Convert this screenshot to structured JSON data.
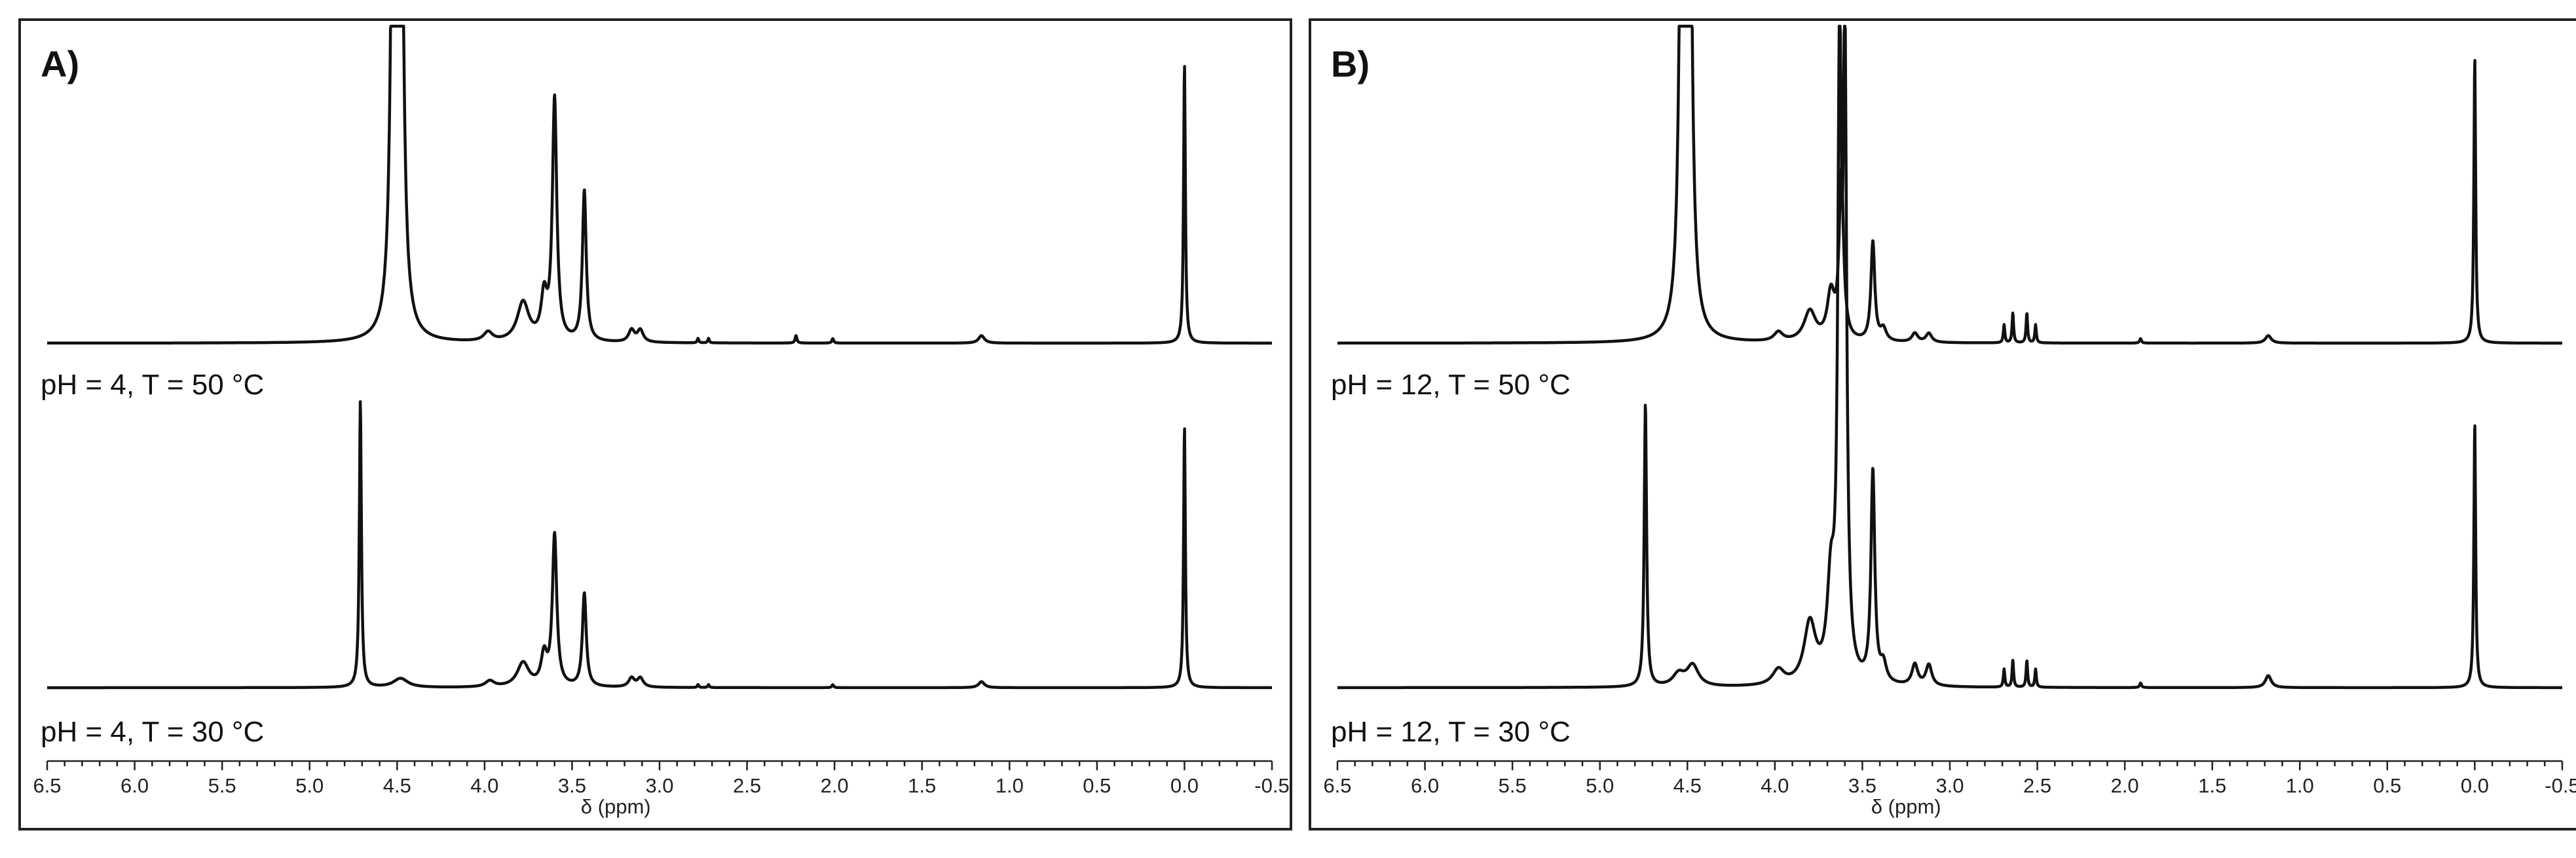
{
  "chart_data": [
    {
      "type": "line",
      "panel_label": "A)",
      "xlabel": "δ (ppm)",
      "xlim": [
        6.5,
        -0.5
      ],
      "x_ticks": [
        "6.5",
        "6.0",
        "5.5",
        "5.0",
        "4.5",
        "4.0",
        "3.5",
        "3.0",
        "2.5",
        "2.0",
        "1.5",
        "1.0",
        "0.5",
        "0.0",
        "-0.5"
      ],
      "x_tick_values": [
        6.5,
        6.0,
        5.5,
        5.0,
        4.5,
        4.0,
        3.5,
        3.0,
        2.5,
        2.0,
        1.5,
        1.0,
        0.5,
        0.0,
        -0.5
      ],
      "series": [
        {
          "name": "pH = 4, T = 50 °C",
          "peaks": [
            {
              "ppm": 4.52,
              "h": 2.0,
              "w": 0.016
            },
            {
              "ppm": 4.48,
              "h": 2.0,
              "w": 0.016
            },
            {
              "ppm": 3.98,
              "h": 0.03,
              "w": 0.03
            },
            {
              "ppm": 3.78,
              "h": 0.13,
              "w": 0.04
            },
            {
              "ppm": 3.66,
              "h": 0.14,
              "w": 0.02
            },
            {
              "ppm": 3.6,
              "h": 0.8,
              "w": 0.015
            },
            {
              "ppm": 3.43,
              "h": 0.5,
              "w": 0.013
            },
            {
              "ppm": 3.16,
              "h": 0.04,
              "w": 0.02
            },
            {
              "ppm": 3.11,
              "h": 0.04,
              "w": 0.02
            },
            {
              "ppm": 2.78,
              "h": 0.015,
              "w": 0.005
            },
            {
              "ppm": 2.72,
              "h": 0.015,
              "w": 0.005
            },
            {
              "ppm": 2.22,
              "h": 0.025,
              "w": 0.006
            },
            {
              "ppm": 2.01,
              "h": 0.015,
              "w": 0.006
            },
            {
              "ppm": 1.16,
              "h": 0.025,
              "w": 0.02
            },
            {
              "ppm": 0.0,
              "h": 0.93,
              "w": 0.006
            }
          ]
        },
        {
          "name": "pH = 4, T = 30 °C",
          "peaks": [
            {
              "ppm": 4.71,
              "h": 0.95,
              "w": 0.007
            },
            {
              "ppm": 4.48,
              "h": 0.03,
              "w": 0.05
            },
            {
              "ppm": 3.97,
              "h": 0.02,
              "w": 0.03
            },
            {
              "ppm": 3.78,
              "h": 0.08,
              "w": 0.04
            },
            {
              "ppm": 3.66,
              "h": 0.1,
              "w": 0.02
            },
            {
              "ppm": 3.6,
              "h": 0.5,
              "w": 0.015
            },
            {
              "ppm": 3.43,
              "h": 0.31,
              "w": 0.013
            },
            {
              "ppm": 3.16,
              "h": 0.03,
              "w": 0.02
            },
            {
              "ppm": 3.11,
              "h": 0.03,
              "w": 0.02
            },
            {
              "ppm": 2.78,
              "h": 0.01,
              "w": 0.005
            },
            {
              "ppm": 2.72,
              "h": 0.01,
              "w": 0.005
            },
            {
              "ppm": 2.01,
              "h": 0.01,
              "w": 0.006
            },
            {
              "ppm": 1.16,
              "h": 0.02,
              "w": 0.02
            },
            {
              "ppm": 0.0,
              "h": 0.87,
              "w": 0.006
            }
          ]
        }
      ]
    },
    {
      "type": "line",
      "panel_label": "B)",
      "xlabel": "δ (ppm)",
      "xlim": [
        6.5,
        -0.5
      ],
      "x_ticks": [
        "6.5",
        "6.0",
        "5.5",
        "5.0",
        "4.5",
        "4.0",
        "3.5",
        "3.0",
        "2.5",
        "2.0",
        "1.5",
        "1.0",
        "0.5",
        "0.0",
        "-0.5"
      ],
      "x_tick_values": [
        6.5,
        6.0,
        5.5,
        5.0,
        4.5,
        4.0,
        3.5,
        3.0,
        2.5,
        2.0,
        1.5,
        1.0,
        0.5,
        0.0,
        -0.5
      ],
      "series": [
        {
          "name": "pH = 12, T = 50 °C",
          "peaks": [
            {
              "ppm": 4.53,
              "h": 2.0,
              "w": 0.016
            },
            {
              "ppm": 4.49,
              "h": 2.0,
              "w": 0.016
            },
            {
              "ppm": 3.98,
              "h": 0.03,
              "w": 0.03
            },
            {
              "ppm": 3.8,
              "h": 0.1,
              "w": 0.04
            },
            {
              "ppm": 3.68,
              "h": 0.15,
              "w": 0.025
            },
            {
              "ppm": 3.62,
              "h": 0.55,
              "w": 0.015
            },
            {
              "ppm": 3.44,
              "h": 0.33,
              "w": 0.013
            },
            {
              "ppm": 3.38,
              "h": 0.04,
              "w": 0.02
            },
            {
              "ppm": 3.2,
              "h": 0.03,
              "w": 0.02
            },
            {
              "ppm": 3.12,
              "h": 0.03,
              "w": 0.02
            },
            {
              "ppm": 2.69,
              "h": 0.06,
              "w": 0.005
            },
            {
              "ppm": 2.64,
              "h": 0.1,
              "w": 0.005
            },
            {
              "ppm": 2.56,
              "h": 0.1,
              "w": 0.005
            },
            {
              "ppm": 2.51,
              "h": 0.06,
              "w": 0.005
            },
            {
              "ppm": 1.91,
              "h": 0.015,
              "w": 0.006
            },
            {
              "ppm": 1.18,
              "h": 0.025,
              "w": 0.02
            },
            {
              "ppm": 0.0,
              "h": 0.95,
              "w": 0.006
            }
          ]
        },
        {
          "name": "pH = 12, T = 30 °C",
          "peaks": [
            {
              "ppm": 4.74,
              "h": 0.94,
              "w": 0.008
            },
            {
              "ppm": 4.55,
              "h": 0.04,
              "w": 0.04
            },
            {
              "ppm": 4.47,
              "h": 0.07,
              "w": 0.04
            },
            {
              "ppm": 3.98,
              "h": 0.05,
              "w": 0.04
            },
            {
              "ppm": 3.8,
              "h": 0.2,
              "w": 0.04
            },
            {
              "ppm": 3.68,
              "h": 0.3,
              "w": 0.025
            },
            {
              "ppm": 3.63,
              "h": 2.0,
              "w": 0.012
            },
            {
              "ppm": 3.6,
              "h": 2.0,
              "w": 0.012
            },
            {
              "ppm": 3.44,
              "h": 0.7,
              "w": 0.013
            },
            {
              "ppm": 3.38,
              "h": 0.06,
              "w": 0.02
            },
            {
              "ppm": 3.2,
              "h": 0.07,
              "w": 0.02
            },
            {
              "ppm": 3.12,
              "h": 0.07,
              "w": 0.02
            },
            {
              "ppm": 2.69,
              "h": 0.06,
              "w": 0.005
            },
            {
              "ppm": 2.64,
              "h": 0.09,
              "w": 0.005
            },
            {
              "ppm": 2.56,
              "h": 0.09,
              "w": 0.005
            },
            {
              "ppm": 2.51,
              "h": 0.06,
              "w": 0.005
            },
            {
              "ppm": 1.91,
              "h": 0.015,
              "w": 0.006
            },
            {
              "ppm": 1.18,
              "h": 0.04,
              "w": 0.02
            },
            {
              "ppm": 0.0,
              "h": 0.88,
              "w": 0.006
            }
          ]
        }
      ]
    }
  ]
}
